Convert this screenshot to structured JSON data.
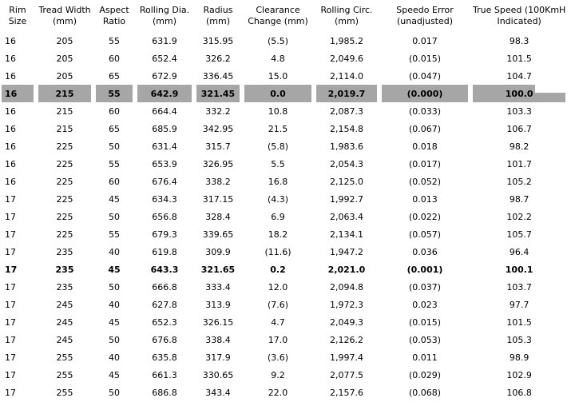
{
  "colors": {
    "highlight_bg": "#a6a6a6",
    "text": "#000000",
    "background": "#ffffff"
  },
  "table": {
    "name": "tire-size-comparison",
    "columns": [
      {
        "id": "rim-size",
        "line1": "Rim",
        "line2": "Size"
      },
      {
        "id": "tread-width",
        "line1": "Tread Width",
        "line2": "(mm)"
      },
      {
        "id": "aspect-ratio",
        "line1": "Aspect",
        "line2": "Ratio"
      },
      {
        "id": "rolling-dia",
        "line1": "Rolling Dia.",
        "line2": "(mm)"
      },
      {
        "id": "radius",
        "line1": "Radius",
        "line2": "(mm)"
      },
      {
        "id": "clearance",
        "line1": "Clearance",
        "line2": "Change (mm)"
      },
      {
        "id": "rolling-circ",
        "line1": "Rolling Circ.",
        "line2": "(mm)"
      },
      {
        "id": "speedo-error",
        "line1": "Speedo Error",
        "line2": "(unadjusted)"
      },
      {
        "id": "true-speed",
        "line1": "True Speed (100KmH",
        "line2": "Indicated)"
      }
    ],
    "rows": [
      {
        "variant": "normal",
        "cells": [
          "16",
          "205",
          "55",
          "631.9",
          "315.95",
          "(5.5)",
          "1,985.2",
          "0.017",
          "98.3"
        ]
      },
      {
        "variant": "normal",
        "cells": [
          "16",
          "205",
          "60",
          "652.4",
          "326.2",
          "4.8",
          "2,049.6",
          "(0.015)",
          "101.5"
        ]
      },
      {
        "variant": "normal",
        "cells": [
          "16",
          "205",
          "65",
          "672.9",
          "336.45",
          "15.0",
          "2,114.0",
          "(0.047)",
          "104.7"
        ]
      },
      {
        "variant": "highlight",
        "cells": [
          "16",
          "215",
          "55",
          "642.9",
          "321.45",
          "0.0",
          "2,019.7",
          "(0.000)",
          "100.0"
        ]
      },
      {
        "variant": "normal",
        "cells": [
          "16",
          "215",
          "60",
          "664.4",
          "332.2",
          "10.8",
          "2,087.3",
          "(0.033)",
          "103.3"
        ]
      },
      {
        "variant": "normal",
        "cells": [
          "16",
          "215",
          "65",
          "685.9",
          "342.95",
          "21.5",
          "2,154.8",
          "(0.067)",
          "106.7"
        ]
      },
      {
        "variant": "normal",
        "cells": [
          "16",
          "225",
          "50",
          "631.4",
          "315.7",
          "(5.8)",
          "1,983.6",
          "0.018",
          "98.2"
        ]
      },
      {
        "variant": "normal",
        "cells": [
          "16",
          "225",
          "55",
          "653.9",
          "326.95",
          "5.5",
          "2,054.3",
          "(0.017)",
          "101.7"
        ]
      },
      {
        "variant": "normal",
        "cells": [
          "16",
          "225",
          "60",
          "676.4",
          "338.2",
          "16.8",
          "2,125.0",
          "(0.052)",
          "105.2"
        ]
      },
      {
        "variant": "normal",
        "cells": [
          "17",
          "225",
          "45",
          "634.3",
          "317.15",
          "(4.3)",
          "1,992.7",
          "0.013",
          "98.7"
        ]
      },
      {
        "variant": "normal",
        "cells": [
          "17",
          "225",
          "50",
          "656.8",
          "328.4",
          "6.9",
          "2,063.4",
          "(0.022)",
          "102.2"
        ]
      },
      {
        "variant": "normal",
        "cells": [
          "17",
          "225",
          "55",
          "679.3",
          "339.65",
          "18.2",
          "2,134.1",
          "(0.057)",
          "105.7"
        ]
      },
      {
        "variant": "normal",
        "cells": [
          "17",
          "235",
          "40",
          "619.8",
          "309.9",
          "(11.6)",
          "1,947.2",
          "0.036",
          "96.4"
        ]
      },
      {
        "variant": "bold",
        "cells": [
          "17",
          "235",
          "45",
          "643.3",
          "321.65",
          "0.2",
          "2,021.0",
          "(0.001)",
          "100.1"
        ]
      },
      {
        "variant": "normal",
        "cells": [
          "17",
          "235",
          "50",
          "666.8",
          "333.4",
          "12.0",
          "2,094.8",
          "(0.037)",
          "103.7"
        ]
      },
      {
        "variant": "normal",
        "cells": [
          "17",
          "245",
          "40",
          "627.8",
          "313.9",
          "(7.6)",
          "1,972.3",
          "0.023",
          "97.7"
        ]
      },
      {
        "variant": "normal",
        "cells": [
          "17",
          "245",
          "45",
          "652.3",
          "326.15",
          "4.7",
          "2,049.3",
          "(0.015)",
          "101.5"
        ]
      },
      {
        "variant": "normal",
        "cells": [
          "17",
          "245",
          "50",
          "676.8",
          "338.4",
          "17.0",
          "2,126.2",
          "(0.053)",
          "105.3"
        ]
      },
      {
        "variant": "normal",
        "cells": [
          "17",
          "255",
          "40",
          "635.8",
          "317.9",
          "(3.6)",
          "1,997.4",
          "0.011",
          "98.9"
        ]
      },
      {
        "variant": "normal",
        "cells": [
          "17",
          "255",
          "45",
          "661.3",
          "330.65",
          "9.2",
          "2,077.5",
          "(0.029)",
          "102.9"
        ]
      },
      {
        "variant": "normal",
        "cells": [
          "17",
          "255",
          "50",
          "686.8",
          "343.4",
          "22.0",
          "2,157.6",
          "(0.068)",
          "106.8"
        ]
      }
    ]
  }
}
